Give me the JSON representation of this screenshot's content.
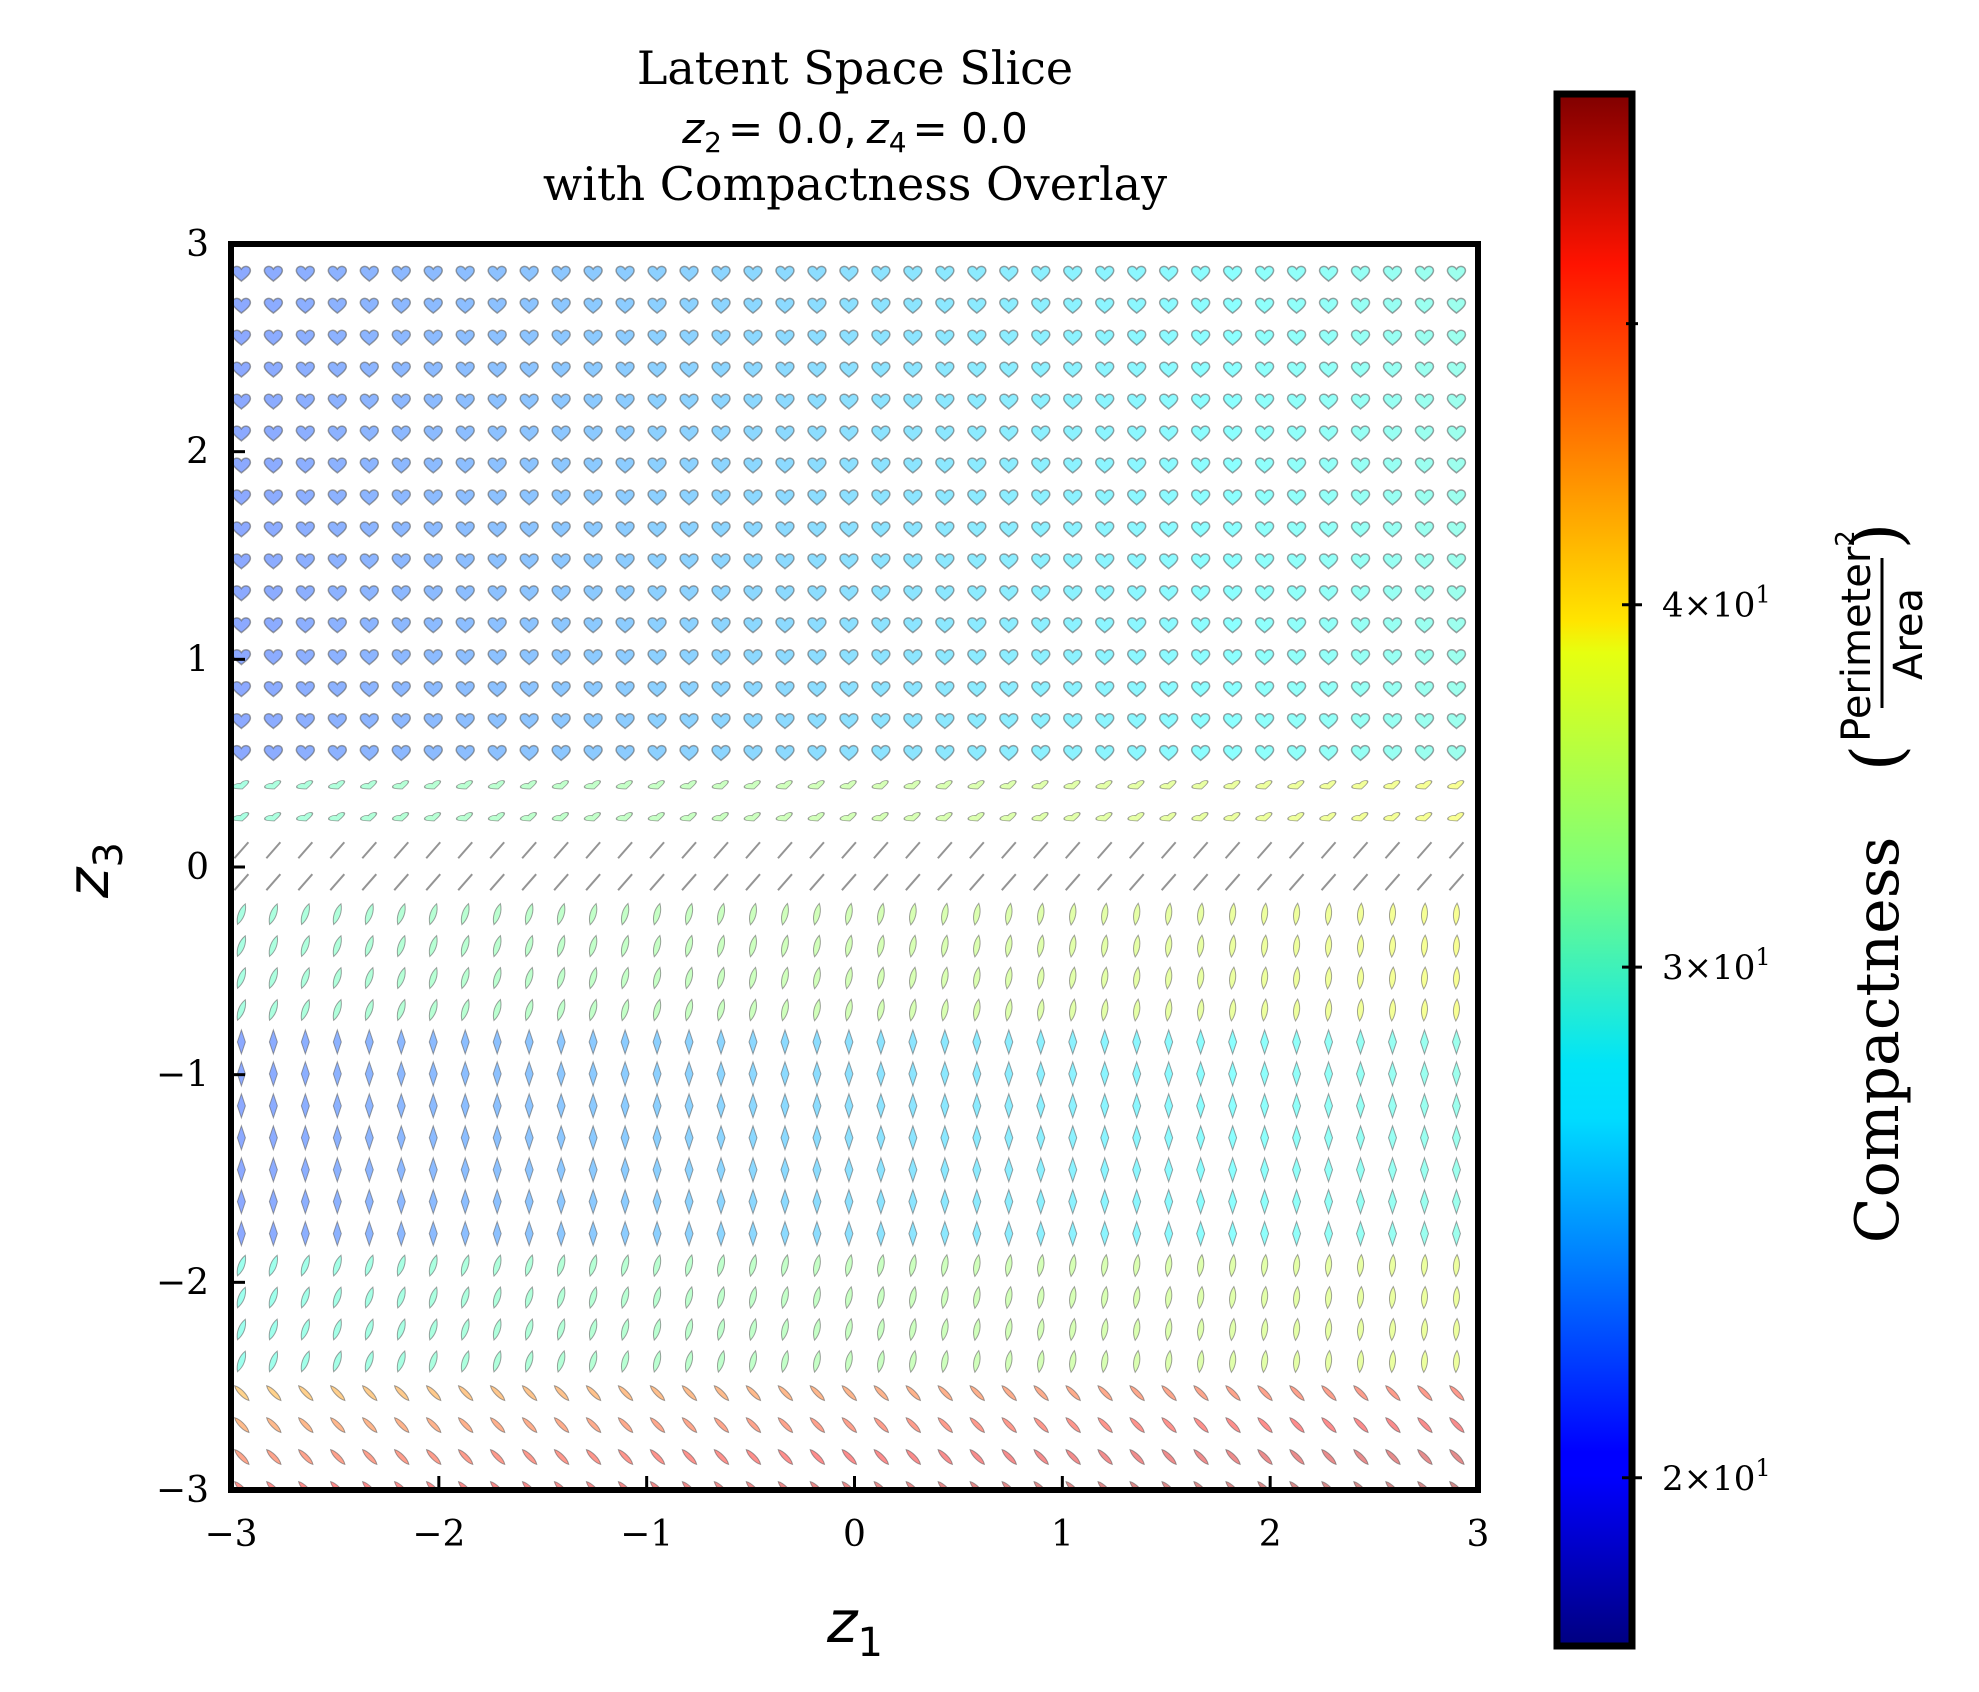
{
  "chart_data": {
    "type": "scatter",
    "title_lines": [
      "Latent Space Slice",
      "with Compactness Overlay"
    ],
    "subtitle_fixed": {
      "a_var": "z",
      "a_sub": "2",
      "a_val": "= 0.0,",
      "b_var": "z",
      "b_sub": "4",
      "b_val": "= 0.0"
    },
    "xlabel": {
      "var": "z",
      "sub": "1"
    },
    "ylabel": {
      "var": "z",
      "sub": "3"
    },
    "xlim": [
      -3,
      3
    ],
    "ylim": [
      -3,
      3
    ],
    "xticks": [
      -3,
      -2,
      -1,
      0,
      1,
      2,
      3
    ],
    "yticks": [
      -3,
      -2,
      -1,
      0,
      1,
      2,
      3
    ],
    "xtick_labels": [
      "−3",
      "−2",
      "−1",
      "0",
      "1",
      "2",
      "3"
    ],
    "ytick_labels": [
      "−3",
      "−2",
      "−1",
      "0",
      "1",
      "2",
      "3"
    ],
    "grid": false,
    "glyph_grid": {
      "cols": 40,
      "rows": 40,
      "x_start": -2.95,
      "x_step": 0.15385,
      "y_start": 2.85,
      "y_step": -0.15385,
      "description_bands": [
        {
          "z3_min": 0.45,
          "z3_max": 3.0,
          "shape": "heart",
          "compactness": 22
        },
        {
          "z3_min": 0.1,
          "z3_max": 0.45,
          "shape": "flat-heart",
          "compactness": 30
        },
        {
          "z3_min": -0.1,
          "z3_max": 0.1,
          "shape": "line",
          "compactness": 40
        },
        {
          "z3_min": -0.8,
          "z3_max": -0.1,
          "shape": "leaf",
          "compactness": 30
        },
        {
          "z3_min": -1.8,
          "z3_max": -0.8,
          "shape": "diamond",
          "compactness": 22
        },
        {
          "z3_min": -2.4,
          "z3_max": -1.8,
          "shape": "leaf",
          "compactness": 29
        },
        {
          "z3_min": -3.0,
          "z3_max": -2.4,
          "shape": "slash",
          "compactness": 40
        }
      ]
    },
    "colorbar": {
      "label": "Compactness",
      "formula_numerator": "Perimeter",
      "formula_power": "2",
      "formula_denominator": "Area",
      "scale": "log",
      "range": [
        17.5,
        60
      ],
      "colormap": "jet",
      "tick_values": [
        20,
        30,
        40
      ],
      "tick_labels": [
        {
          "mantissa": "2",
          "base": "10",
          "exp": "1"
        },
        {
          "mantissa": "3",
          "base": "10",
          "exp": "1"
        },
        {
          "mantissa": "4",
          "base": "10",
          "exp": "1"
        }
      ],
      "minor_ticks": [
        50
      ]
    }
  }
}
